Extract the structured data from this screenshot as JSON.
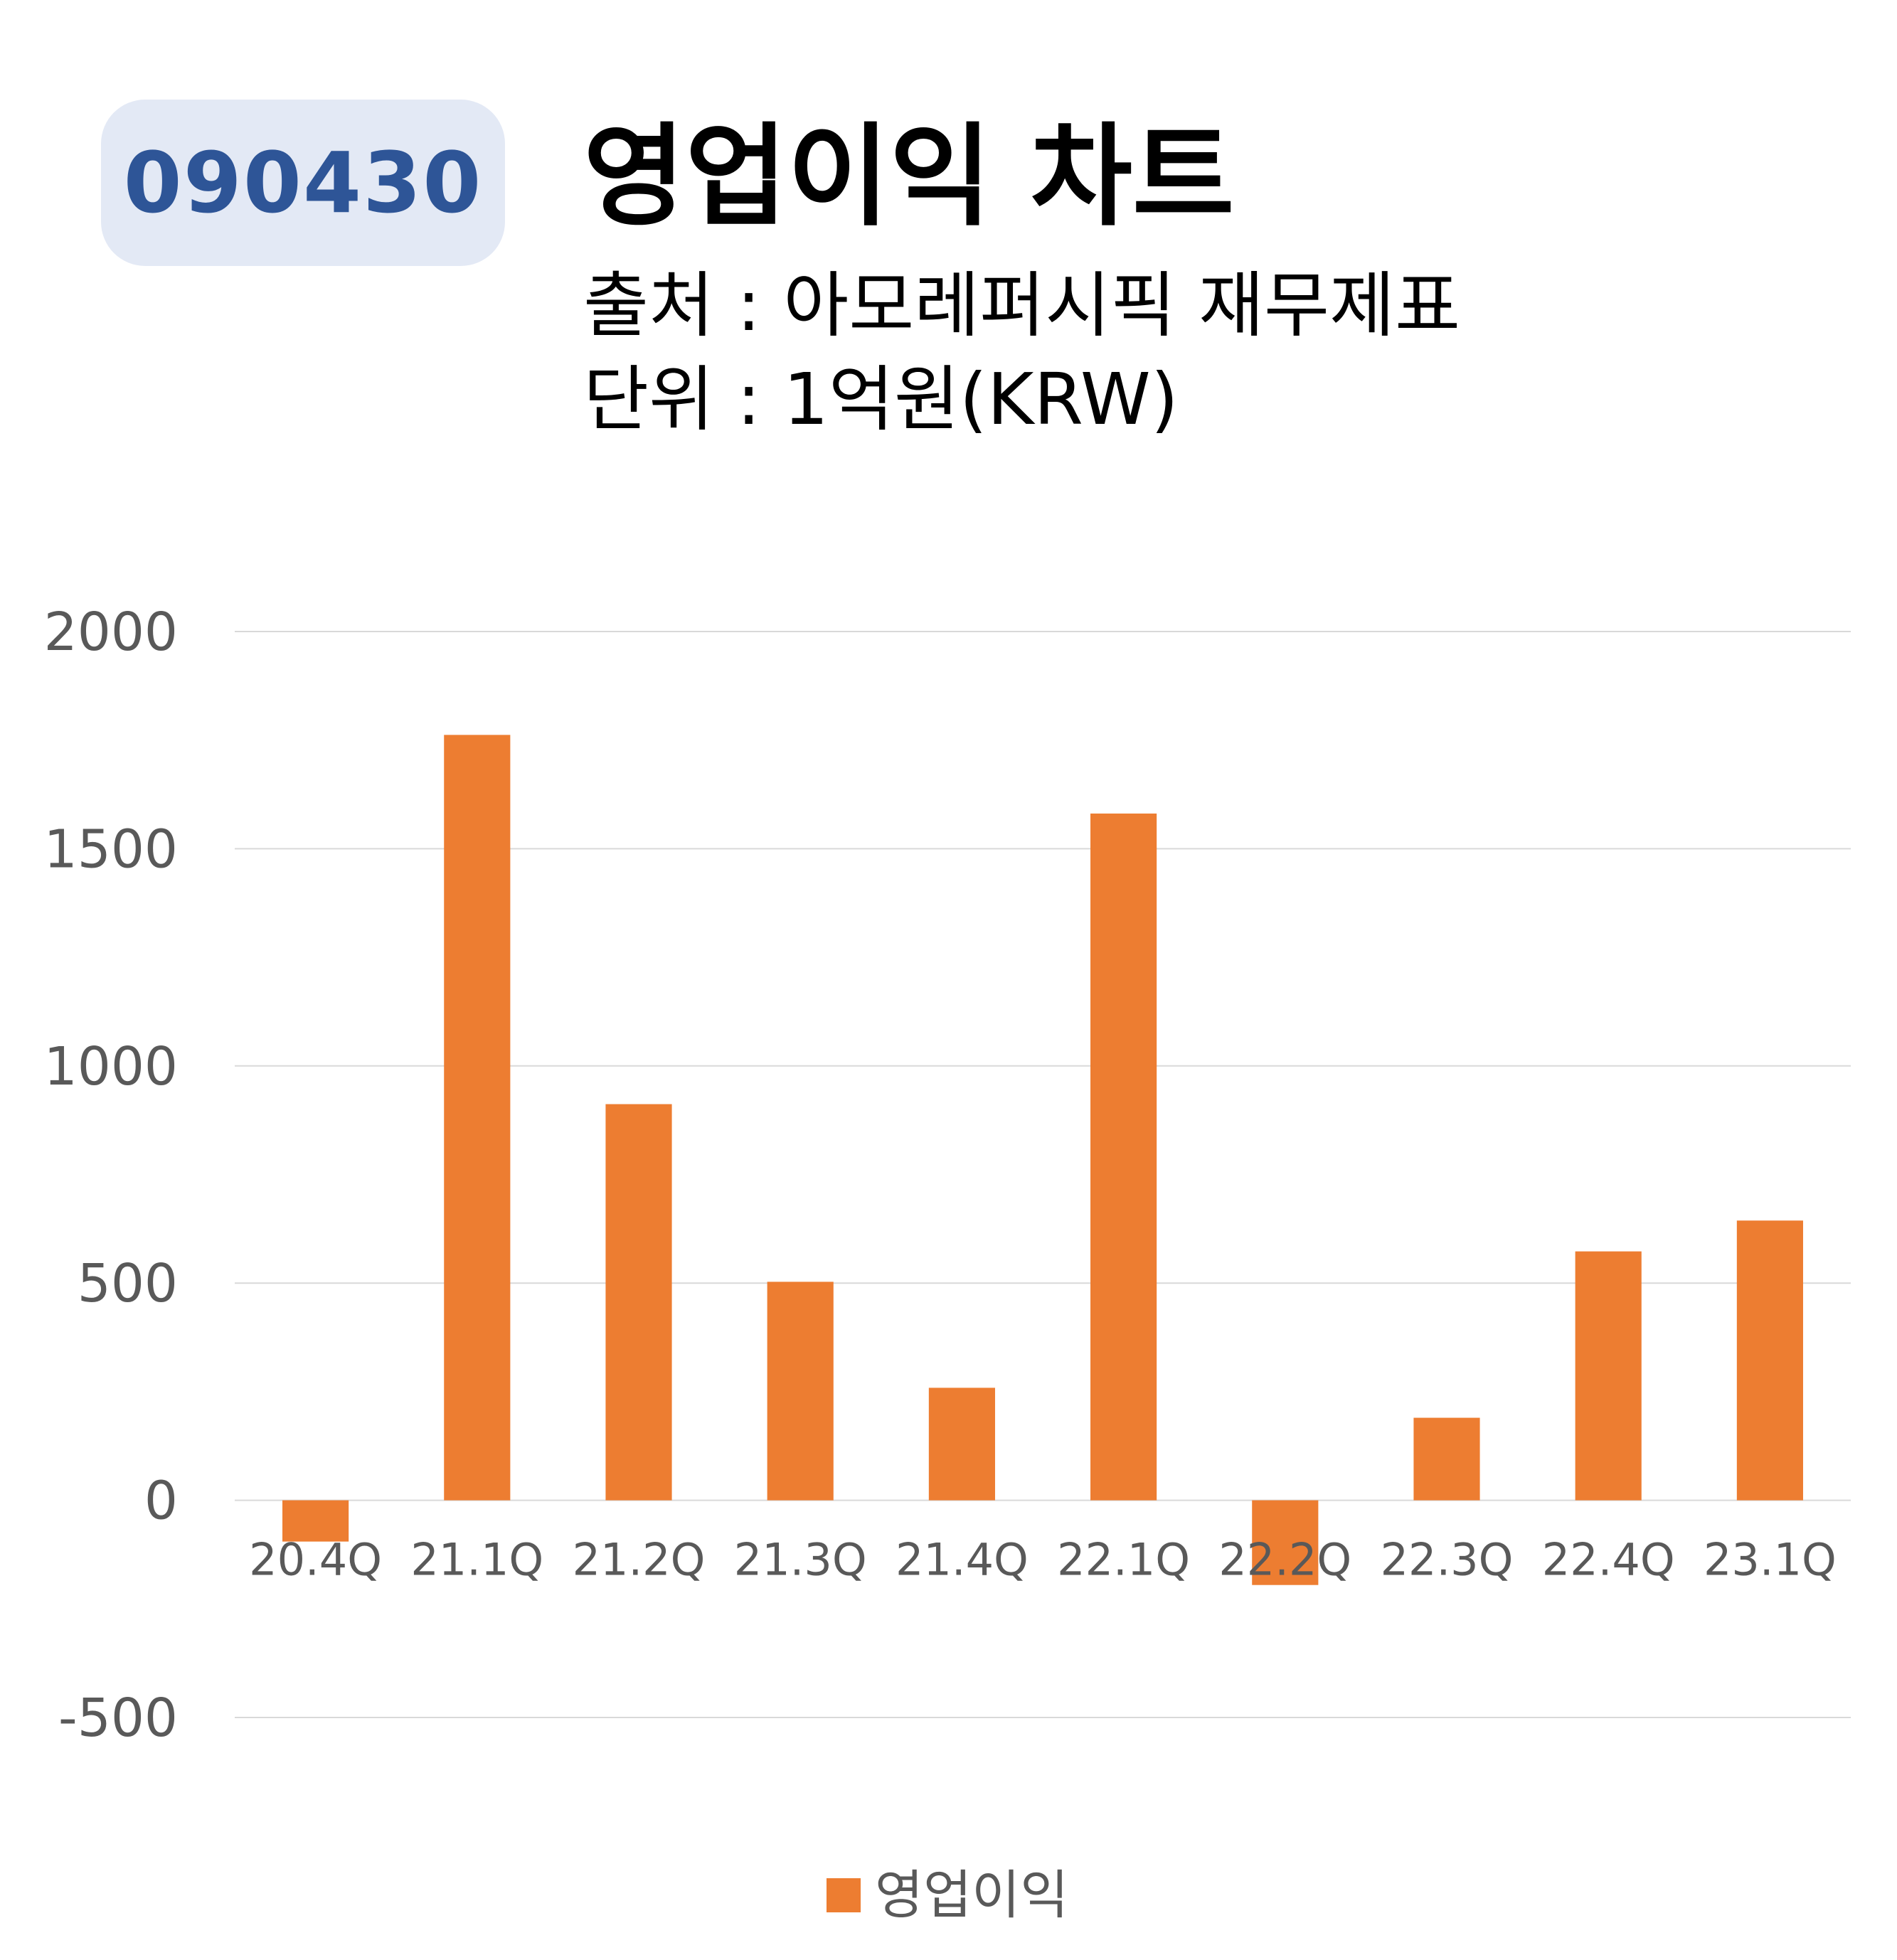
{
  "header": {
    "ticker": "090430",
    "title": "영업이익 차트",
    "source": "출처 : 아모레퍼시픽 재무제표",
    "unit": "단위 : 1억원(KRW)"
  },
  "colors": {
    "bar": "#ed7d31",
    "badge_bg": "#e3e9f5",
    "badge_text": "#2e5597",
    "grid": "#d9d9d9",
    "tick_text": "#595959"
  },
  "chart_data": {
    "type": "bar",
    "categories": [
      "20.4Q",
      "21.1Q",
      "21.2Q",
      "21.3Q",
      "21.4Q",
      "22.1Q",
      "22.2Q",
      "22.3Q",
      "22.4Q",
      "23.1Q"
    ],
    "series": [
      {
        "name": "영업이익",
        "values": [
          -95,
          1762,
          912,
          503,
          259,
          1581,
          -195,
          190,
          573,
          644
        ]
      }
    ],
    "yticks": [
      2000,
      1500,
      1000,
      500,
      0,
      -500
    ],
    "ylim": [
      -500,
      2000
    ],
    "grid": true,
    "legend_position": "bottom-center"
  }
}
